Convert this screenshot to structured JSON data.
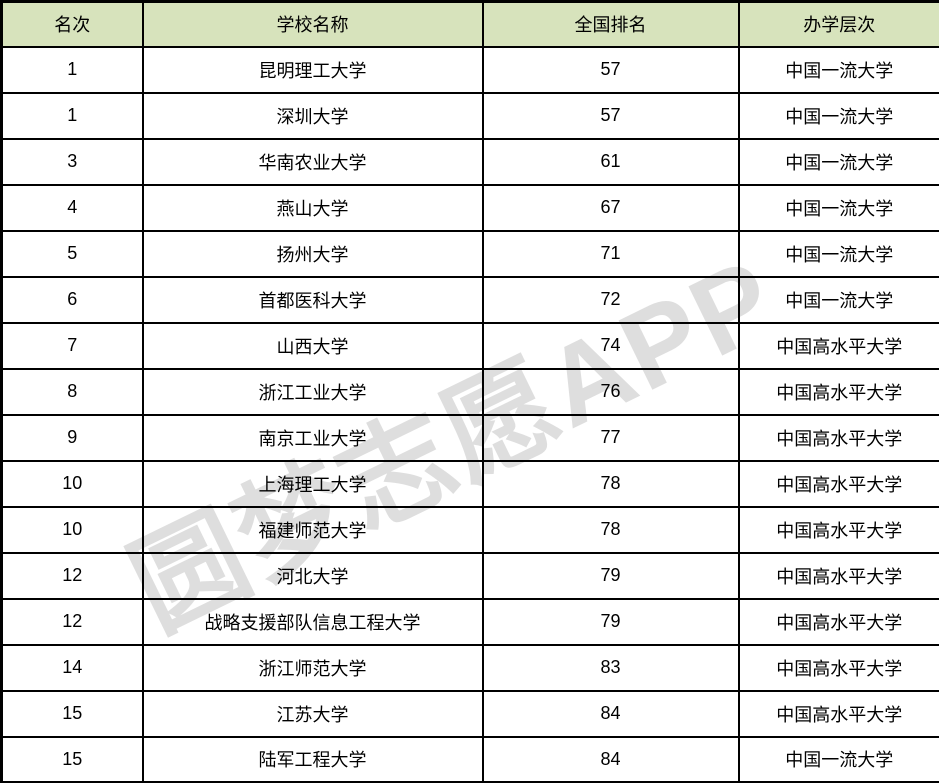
{
  "chart_data": {
    "type": "table",
    "columns": [
      "名次",
      "学校名称",
      "全国排名",
      "办学层次"
    ],
    "rows": [
      [
        "1",
        "昆明理工大学",
        "57",
        "中国一流大学"
      ],
      [
        "1",
        "深圳大学",
        "57",
        "中国一流大学"
      ],
      [
        "3",
        "华南农业大学",
        "61",
        "中国一流大学"
      ],
      [
        "4",
        "燕山大学",
        "67",
        "中国一流大学"
      ],
      [
        "5",
        "扬州大学",
        "71",
        "中国一流大学"
      ],
      [
        "6",
        "首都医科大学",
        "72",
        "中国一流大学"
      ],
      [
        "7",
        "山西大学",
        "74",
        "中国高水平大学"
      ],
      [
        "8",
        "浙江工业大学",
        "76",
        "中国高水平大学"
      ],
      [
        "9",
        "南京工业大学",
        "77",
        "中国高水平大学"
      ],
      [
        "10",
        "上海理工大学",
        "78",
        "中国高水平大学"
      ],
      [
        "10",
        "福建师范大学",
        "78",
        "中国高水平大学"
      ],
      [
        "12",
        "河北大学",
        "79",
        "中国高水平大学"
      ],
      [
        "12",
        "战略支援部队信息工程大学",
        "79",
        "中国高水平大学"
      ],
      [
        "14",
        "浙江师范大学",
        "83",
        "中国高水平大学"
      ],
      [
        "15",
        "江苏大学",
        "84",
        "中国高水平大学"
      ],
      [
        "15",
        "陆军工程大学",
        "84",
        "中国一流大学"
      ]
    ],
    "legend": "none",
    "grid": true
  },
  "watermark": {
    "text": "圆梦志愿APP"
  },
  "colors": {
    "header_bg": "#d7e3bc",
    "border": "#000000",
    "watermark_gray": "#dddddd",
    "text": "#000000"
  }
}
